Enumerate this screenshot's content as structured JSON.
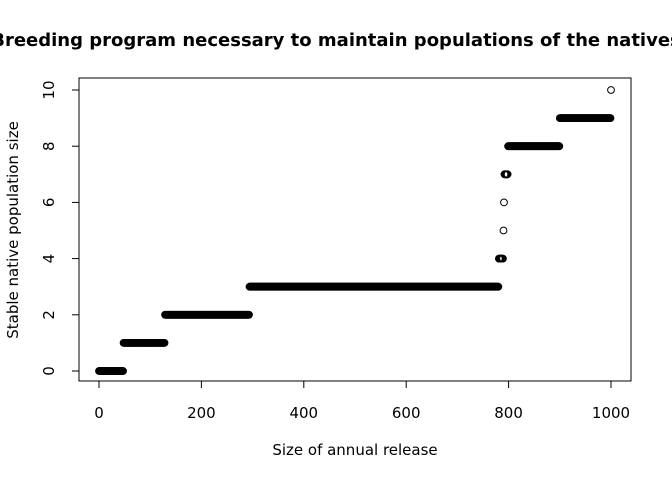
{
  "chart_data": {
    "type": "scatter",
    "title": "Breeding program necessary to maintain populations of the natives",
    "xlabel": "Size of annual release",
    "ylabel": "Stable native population size",
    "xlim": [
      0,
      1000
    ],
    "ylim": [
      0,
      10
    ],
    "xticks": [
      "0",
      "200",
      "400",
      "600",
      "800",
      "1000"
    ],
    "yticks": [
      "0",
      "2",
      "4",
      "6",
      "8",
      "10"
    ],
    "grid": false,
    "marker": "open-circle",
    "series": [
      {
        "segments": [
          {
            "x_start": 0,
            "x_end": 47,
            "y": 0
          },
          {
            "x_start": 48,
            "x_end": 128,
            "y": 1
          },
          {
            "x_start": 129,
            "x_end": 293,
            "y": 2
          },
          {
            "x_start": 294,
            "x_end": 780,
            "y": 3
          },
          {
            "x_start": 781,
            "x_end": 789,
            "y": 4
          },
          {
            "x_start": 790,
            "x_end": 790,
            "y": 5
          },
          {
            "x_start": 791,
            "x_end": 791,
            "y": 6
          },
          {
            "x_start": 792,
            "x_end": 798,
            "y": 7
          },
          {
            "x_start": 799,
            "x_end": 899,
            "y": 8
          },
          {
            "x_start": 900,
            "x_end": 999,
            "y": 9
          },
          {
            "x_start": 1000,
            "x_end": 1000,
            "y": 10
          }
        ]
      }
    ]
  }
}
